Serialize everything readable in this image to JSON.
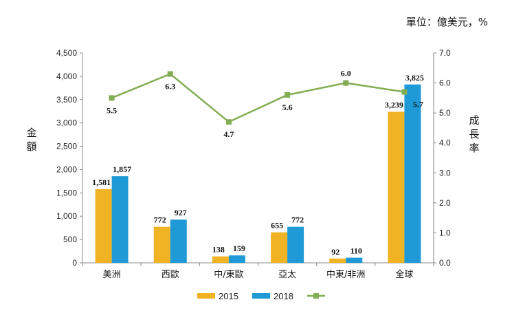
{
  "chart_data": {
    "type": "bar",
    "unit_note": "單位：億美元，%",
    "ylabel": "金額",
    "y2label": "成長率",
    "ylim": [
      0,
      4500
    ],
    "y2lim": [
      0,
      7
    ],
    "yticks": [
      "0",
      "500",
      "1,000",
      "1,500",
      "2,000",
      "2,500",
      "3,000",
      "3,500",
      "4,000",
      "4,500"
    ],
    "y2ticks": [
      "0.0",
      "1.0",
      "2.0",
      "3.0",
      "4.0",
      "5.0",
      "6.0",
      "7.0"
    ],
    "categories": [
      "美洲",
      "西歐",
      "中/東歐",
      "亞太",
      "中東/非洲",
      "全球"
    ],
    "series": [
      {
        "name": "2015",
        "kind": "bar",
        "color": "#f0b323",
        "values": [
          1581,
          772,
          138,
          655,
          92,
          3239
        ],
        "labels": [
          "1,581",
          "772",
          "138",
          "655",
          "92",
          "3,239"
        ]
      },
      {
        "name": "2018",
        "kind": "bar",
        "color": "#1f9ad6",
        "values": [
          1857,
          927,
          159,
          772,
          110,
          3825
        ],
        "labels": [
          "1,857",
          "927",
          "159",
          "772",
          "110",
          "3,825"
        ]
      },
      {
        "name": "",
        "kind": "line",
        "axis": "right",
        "color": "#82ad52",
        "values": [
          5.5,
          6.3,
          4.7,
          5.6,
          6.0,
          5.7
        ],
        "labels": [
          "5.5",
          "6.3",
          "4.7",
          "5.6",
          "6.0",
          "5.7"
        ]
      }
    ],
    "legend_position": "bottom",
    "grid": false
  }
}
